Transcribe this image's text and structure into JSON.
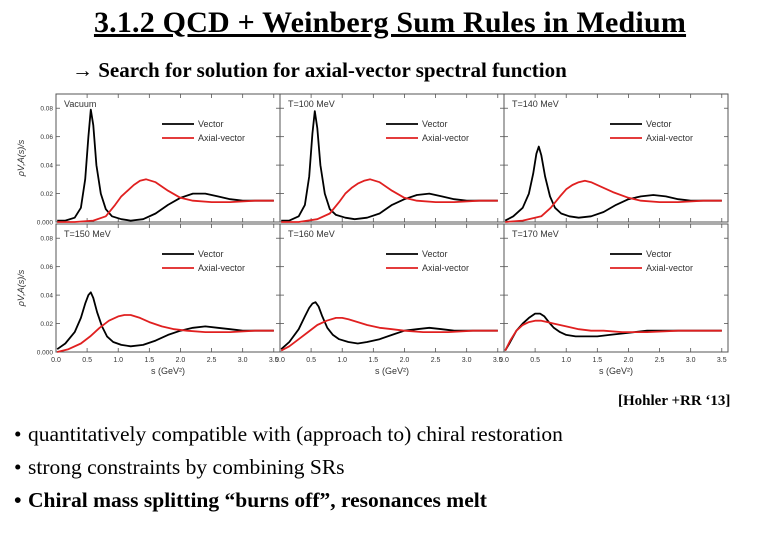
{
  "slide": {
    "title": "3.1.2 QCD + Weinberg Sum Rules in Medium",
    "subtitle": "→ Search for solution for axial-vector spectral function",
    "citation": "[Hohler +RR ‘13]",
    "bullets": [
      {
        "bullet": "•",
        "text": "quantitatively compatible with (approach to) chiral restoration",
        "bold": false
      },
      {
        "bullet": "•",
        "text": "strong constraints by combining SRs",
        "bold": false
      },
      {
        "bullet": "•",
        "text": "Chiral mass splitting “burns off”,  resonances melt",
        "bold": true
      }
    ]
  },
  "colors": {
    "vector": "#000000",
    "axial": "#e02020",
    "frame": "#555555"
  },
  "chart_data": {
    "type": "line",
    "layout": "2x3 grid",
    "ylabel": "ρV,A(s)/s",
    "xlabel": "s (GeV²)",
    "xlim": [
      0,
      3.6
    ],
    "ylim": [
      0,
      0.09
    ],
    "xticks": [
      "0.0",
      "0.5",
      "1.0",
      "1.5",
      "2.0",
      "2.5",
      "3.0",
      "3.5"
    ],
    "yticks": [
      "0.000",
      "0.02",
      "0.04",
      "0.06",
      "0.08"
    ],
    "grid": false,
    "legend_placement": "top-right",
    "panels": [
      {
        "label": "Vacuum",
        "series": [
          {
            "name": "Vector",
            "x": [
              0.02,
              0.15,
              0.3,
              0.4,
              0.47,
              0.52,
              0.56,
              0.6,
              0.65,
              0.72,
              0.8,
              0.9,
              1.05,
              1.2,
              1.4,
              1.6,
              1.8,
              2.0,
              2.2,
              2.4,
              2.6,
              2.8,
              3.0,
              3.2,
              3.5
            ],
            "y": [
              0.001,
              0.001,
              0.003,
              0.01,
              0.03,
              0.06,
              0.079,
              0.068,
              0.04,
              0.02,
              0.009,
              0.004,
              0.002,
              0.001,
              0.002,
              0.006,
              0.012,
              0.017,
              0.02,
              0.02,
              0.018,
              0.016,
              0.015,
              0.015,
              0.015
            ]
          },
          {
            "name": "Axial-vector",
            "x": [
              0.02,
              0.3,
              0.6,
              0.8,
              0.95,
              1.05,
              1.15,
              1.25,
              1.35,
              1.45,
              1.6,
              1.8,
              2.0,
              2.2,
              2.5,
              2.8,
              3.2,
              3.5
            ],
            "y": [
              0,
              0,
              0.001,
              0.004,
              0.012,
              0.018,
              0.022,
              0.026,
              0.029,
              0.03,
              0.028,
              0.022,
              0.017,
              0.015,
              0.014,
              0.014,
              0.015,
              0.015
            ]
          }
        ]
      },
      {
        "label": "T=100 MeV",
        "series": [
          {
            "name": "Vector",
            "x": [
              0.02,
              0.15,
              0.3,
              0.4,
              0.47,
              0.52,
              0.56,
              0.6,
              0.65,
              0.72,
              0.8,
              0.9,
              1.05,
              1.2,
              1.4,
              1.6,
              1.8,
              2.0,
              2.2,
              2.4,
              2.6,
              2.8,
              3.0,
              3.2,
              3.5
            ],
            "y": [
              0.001,
              0.001,
              0.004,
              0.012,
              0.032,
              0.062,
              0.078,
              0.066,
              0.04,
              0.02,
              0.009,
              0.005,
              0.003,
              0.002,
              0.003,
              0.006,
              0.012,
              0.016,
              0.019,
              0.02,
              0.018,
              0.016,
              0.015,
              0.015,
              0.015
            ]
          },
          {
            "name": "Axial-vector",
            "x": [
              0.02,
              0.3,
              0.6,
              0.8,
              0.95,
              1.05,
              1.15,
              1.25,
              1.35,
              1.45,
              1.6,
              1.8,
              2.0,
              2.2,
              2.5,
              2.8,
              3.2,
              3.5
            ],
            "y": [
              0,
              0,
              0.002,
              0.006,
              0.014,
              0.02,
              0.024,
              0.027,
              0.029,
              0.03,
              0.028,
              0.022,
              0.017,
              0.015,
              0.014,
              0.014,
              0.015,
              0.015
            ]
          }
        ]
      },
      {
        "label": "T=140 MeV",
        "series": [
          {
            "name": "Vector",
            "x": [
              0.02,
              0.15,
              0.3,
              0.4,
              0.47,
              0.52,
              0.56,
              0.6,
              0.66,
              0.74,
              0.82,
              0.92,
              1.05,
              1.2,
              1.4,
              1.6,
              1.8,
              2.0,
              2.2,
              2.4,
              2.6,
              2.8,
              3.0,
              3.2,
              3.5
            ],
            "y": [
              0.001,
              0.004,
              0.01,
              0.02,
              0.034,
              0.048,
              0.053,
              0.047,
              0.032,
              0.018,
              0.01,
              0.006,
              0.004,
              0.003,
              0.004,
              0.007,
              0.012,
              0.016,
              0.018,
              0.019,
              0.018,
              0.016,
              0.015,
              0.015,
              0.015
            ]
          },
          {
            "name": "Axial-vector",
            "x": [
              0.02,
              0.3,
              0.6,
              0.75,
              0.9,
              1.0,
              1.1,
              1.2,
              1.3,
              1.4,
              1.55,
              1.75,
              2.0,
              2.2,
              2.5,
              2.8,
              3.2,
              3.5
            ],
            "y": [
              0,
              0.001,
              0.004,
              0.01,
              0.018,
              0.023,
              0.026,
              0.028,
              0.029,
              0.028,
              0.025,
              0.021,
              0.017,
              0.015,
              0.014,
              0.014,
              0.015,
              0.015
            ]
          }
        ]
      },
      {
        "label": "T=150 MeV",
        "series": [
          {
            "name": "Vector",
            "x": [
              0.02,
              0.15,
              0.3,
              0.4,
              0.47,
              0.52,
              0.56,
              0.6,
              0.66,
              0.74,
              0.82,
              0.92,
              1.05,
              1.2,
              1.4,
              1.6,
              1.8,
              2.0,
              2.2,
              2.4,
              2.6,
              2.8,
              3.0,
              3.2,
              3.5
            ],
            "y": [
              0.002,
              0.006,
              0.014,
              0.024,
              0.034,
              0.04,
              0.042,
              0.038,
              0.028,
              0.018,
              0.011,
              0.007,
              0.005,
              0.004,
              0.005,
              0.008,
              0.012,
              0.015,
              0.017,
              0.018,
              0.017,
              0.016,
              0.015,
              0.015,
              0.015
            ]
          },
          {
            "name": "Axial-vector",
            "x": [
              0.02,
              0.2,
              0.4,
              0.55,
              0.7,
              0.85,
              1.0,
              1.1,
              1.2,
              1.35,
              1.5,
              1.7,
              1.9,
              2.1,
              2.4,
              2.8,
              3.2,
              3.5
            ],
            "y": [
              0,
              0.002,
              0.006,
              0.011,
              0.017,
              0.022,
              0.025,
              0.026,
              0.026,
              0.024,
              0.021,
              0.018,
              0.016,
              0.015,
              0.014,
              0.014,
              0.015,
              0.015
            ]
          }
        ]
      },
      {
        "label": "T=160 MeV",
        "series": [
          {
            "name": "Vector",
            "x": [
              0.02,
              0.15,
              0.3,
              0.4,
              0.47,
              0.52,
              0.57,
              0.62,
              0.68,
              0.76,
              0.85,
              0.95,
              1.1,
              1.25,
              1.4,
              1.6,
              1.8,
              2.0,
              2.2,
              2.4,
              2.6,
              2.8,
              3.0,
              3.2,
              3.5
            ],
            "y": [
              0.002,
              0.007,
              0.016,
              0.025,
              0.031,
              0.034,
              0.035,
              0.032,
              0.025,
              0.017,
              0.012,
              0.009,
              0.007,
              0.006,
              0.007,
              0.009,
              0.012,
              0.015,
              0.016,
              0.017,
              0.016,
              0.015,
              0.015,
              0.015,
              0.015
            ]
          },
          {
            "name": "Axial-vector",
            "x": [
              0.02,
              0.15,
              0.3,
              0.45,
              0.6,
              0.75,
              0.9,
              1.0,
              1.1,
              1.25,
              1.4,
              1.6,
              1.8,
              2.0,
              2.3,
              2.7,
              3.1,
              3.5
            ],
            "y": [
              0.001,
              0.004,
              0.009,
              0.014,
              0.019,
              0.022,
              0.024,
              0.024,
              0.023,
              0.021,
              0.019,
              0.017,
              0.016,
              0.015,
              0.014,
              0.014,
              0.015,
              0.015
            ]
          }
        ]
      },
      {
        "label": "T=170 MeV",
        "series": [
          {
            "name": "Vector",
            "x": [
              0.02,
              0.1,
              0.2,
              0.3,
              0.4,
              0.5,
              0.58,
              0.65,
              0.72,
              0.8,
              0.9,
              1.0,
              1.15,
              1.3,
              1.5,
              1.7,
              1.9,
              2.1,
              2.3,
              2.5,
              2.7,
              2.9,
              3.1,
              3.3,
              3.5
            ],
            "y": [
              0.001,
              0.007,
              0.015,
              0.02,
              0.024,
              0.027,
              0.027,
              0.025,
              0.021,
              0.017,
              0.014,
              0.012,
              0.011,
              0.011,
              0.011,
              0.012,
              0.013,
              0.014,
              0.015,
              0.015,
              0.015,
              0.015,
              0.015,
              0.015,
              0.015
            ]
          },
          {
            "name": "Axial-vector",
            "x": [
              0.02,
              0.1,
              0.2,
              0.3,
              0.4,
              0.5,
              0.6,
              0.7,
              0.8,
              0.9,
              1.0,
              1.2,
              1.4,
              1.6,
              1.9,
              2.3,
              2.8,
              3.5
            ],
            "y": [
              0.001,
              0.008,
              0.015,
              0.019,
              0.021,
              0.022,
              0.022,
              0.021,
              0.02,
              0.019,
              0.018,
              0.016,
              0.015,
              0.015,
              0.014,
              0.014,
              0.015,
              0.015
            ]
          }
        ]
      }
    ]
  }
}
